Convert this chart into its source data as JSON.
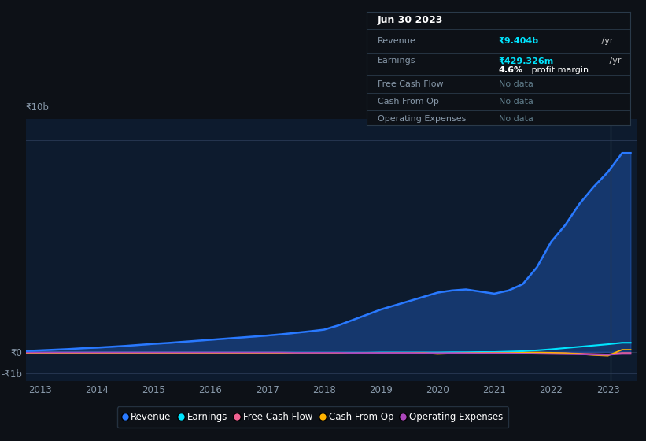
{
  "bg_color": "#0d1117",
  "plot_bg_color": "#0d1b2e",
  "grid_color": "#253550",
  "title_date": "Jun 30 2023",
  "tooltip": {
    "revenue_label": "Revenue",
    "revenue_value": "₹9.404b",
    "revenue_unit": " /yr",
    "earnings_label": "Earnings",
    "earnings_value": "₹429.326m",
    "earnings_unit": " /yr",
    "margin_label": "4.6%",
    "margin_text": " profit margin",
    "fcf_label": "Free Cash Flow",
    "fcf_value": "No data",
    "cashop_label": "Cash From Op",
    "cashop_value": "No data",
    "opex_label": "Operating Expenses",
    "opex_value": "No data"
  },
  "years": [
    2012.75,
    2013.0,
    2013.25,
    2013.5,
    2013.75,
    2014.0,
    2014.25,
    2014.5,
    2014.75,
    2015.0,
    2015.25,
    2015.5,
    2015.75,
    2016.0,
    2016.25,
    2016.5,
    2016.75,
    2017.0,
    2017.25,
    2017.5,
    2017.75,
    2018.0,
    2018.25,
    2018.5,
    2018.75,
    2019.0,
    2019.25,
    2019.5,
    2019.75,
    2020.0,
    2020.25,
    2020.5,
    2020.75,
    2021.0,
    2021.25,
    2021.5,
    2021.75,
    2022.0,
    2022.25,
    2022.5,
    2022.75,
    2023.0,
    2023.25,
    2023.4
  ],
  "revenue": [
    0.04,
    0.07,
    0.1,
    0.13,
    0.17,
    0.2,
    0.24,
    0.28,
    0.33,
    0.38,
    0.42,
    0.47,
    0.52,
    0.57,
    0.62,
    0.67,
    0.72,
    0.77,
    0.83,
    0.9,
    0.97,
    1.05,
    1.25,
    1.5,
    1.75,
    2.0,
    2.2,
    2.4,
    2.6,
    2.8,
    2.9,
    2.95,
    2.85,
    2.75,
    2.9,
    3.2,
    4.0,
    5.2,
    6.0,
    7.0,
    7.8,
    8.5,
    9.4,
    9.4
  ],
  "earnings": [
    -0.04,
    -0.04,
    -0.04,
    -0.04,
    -0.04,
    -0.04,
    -0.04,
    -0.04,
    -0.04,
    -0.04,
    -0.04,
    -0.04,
    -0.04,
    -0.04,
    -0.04,
    -0.04,
    -0.04,
    -0.04,
    -0.04,
    -0.04,
    -0.04,
    -0.04,
    -0.04,
    -0.04,
    -0.04,
    -0.03,
    -0.03,
    -0.03,
    -0.03,
    -0.03,
    -0.02,
    -0.02,
    -0.01,
    -0.01,
    0.01,
    0.03,
    0.07,
    0.12,
    0.18,
    0.24,
    0.3,
    0.36,
    0.43,
    0.43
  ],
  "free_cash_flow": [
    -0.05,
    -0.05,
    -0.05,
    -0.05,
    -0.05,
    -0.05,
    -0.05,
    -0.05,
    -0.05,
    -0.05,
    -0.05,
    -0.05,
    -0.05,
    -0.05,
    -0.05,
    -0.05,
    -0.05,
    -0.05,
    -0.06,
    -0.06,
    -0.06,
    -0.07,
    -0.07,
    -0.07,
    -0.06,
    -0.06,
    -0.05,
    -0.05,
    -0.05,
    -0.07,
    -0.06,
    -0.05,
    -0.05,
    -0.04,
    -0.04,
    -0.04,
    -0.04,
    -0.05,
    -0.06,
    -0.08,
    -0.1,
    -0.12,
    -0.05,
    -0.05
  ],
  "cash_from_op": [
    -0.06,
    -0.06,
    -0.06,
    -0.06,
    -0.06,
    -0.06,
    -0.06,
    -0.06,
    -0.06,
    -0.06,
    -0.06,
    -0.06,
    -0.06,
    -0.06,
    -0.06,
    -0.07,
    -0.07,
    -0.07,
    -0.07,
    -0.07,
    -0.08,
    -0.08,
    -0.08,
    -0.08,
    -0.07,
    -0.07,
    -0.06,
    -0.06,
    -0.06,
    -0.1,
    -0.08,
    -0.07,
    -0.06,
    -0.06,
    -0.05,
    -0.04,
    -0.03,
    -0.04,
    -0.06,
    -0.1,
    -0.15,
    -0.18,
    0.1,
    0.1
  ],
  "operating_expenses": [
    -0.03,
    -0.03,
    -0.03,
    -0.03,
    -0.03,
    -0.03,
    -0.03,
    -0.03,
    -0.03,
    -0.03,
    -0.03,
    -0.03,
    -0.03,
    -0.03,
    -0.03,
    -0.03,
    -0.03,
    -0.03,
    -0.03,
    -0.04,
    -0.04,
    -0.04,
    -0.04,
    -0.05,
    -0.05,
    -0.05,
    -0.05,
    -0.05,
    -0.06,
    -0.06,
    -0.06,
    -0.07,
    -0.07,
    -0.07,
    -0.07,
    -0.08,
    -0.09,
    -0.1,
    -0.11,
    -0.12,
    -0.13,
    -0.14,
    -0.1,
    -0.1
  ],
  "revenue_color": "#2979ff",
  "earnings_color": "#00e5ff",
  "fcf_color": "#f06292",
  "cashop_color": "#ffb300",
  "opex_color": "#ab47bc",
  "ylim": [
    -1.4,
    11.0
  ],
  "xlim": [
    2012.75,
    2023.5
  ],
  "ytick_positions": [
    -1.0,
    0.0,
    10.0
  ],
  "ytick_labels": [
    "-₹1b",
    "₹0",
    "₹10b"
  ],
  "xticks": [
    2013,
    2014,
    2015,
    2016,
    2017,
    2018,
    2019,
    2020,
    2021,
    2022,
    2023
  ],
  "legend_labels": [
    "Revenue",
    "Earnings",
    "Free Cash Flow",
    "Cash From Op",
    "Operating Expenses"
  ],
  "legend_colors": [
    "#2979ff",
    "#00e5ff",
    "#f06292",
    "#ffb300",
    "#ab47bc"
  ],
  "tooltip_color_revenue": "#00e5ff",
  "tooltip_color_earnings": "#00e5ff",
  "tooltip_color_nodata": "#607d8b",
  "tooltip_bg": "#0d1117",
  "tooltip_border": "#2a3a4a"
}
